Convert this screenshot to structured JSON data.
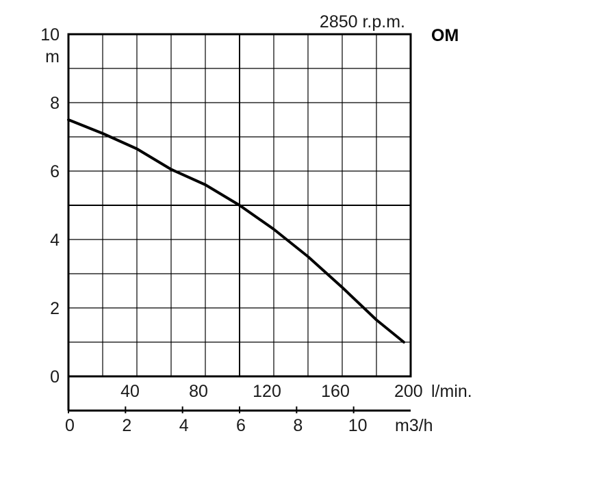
{
  "chart_data": {
    "type": "line",
    "title": "",
    "speed_label": "2850 r.p.m.",
    "model_label": "OM",
    "y_axis": {
      "min": 0,
      "max": 10,
      "unit_label": "m",
      "ticks": [
        "0",
        "2",
        "4",
        "6",
        "8",
        "10"
      ],
      "tick_values": [
        0,
        2,
        4,
        6,
        8,
        10
      ]
    },
    "x_axis_flow_lmin": {
      "unit_label": "l/min.",
      "ticks": [
        "40",
        "80",
        "120",
        "160",
        "200"
      ],
      "tick_values": [
        40,
        80,
        120,
        160,
        200
      ],
      "min": 0,
      "max": 200
    },
    "x_axis_flow_m3h": {
      "unit_label": "m3/h",
      "ticks": [
        "0",
        "2",
        "4",
        "6",
        "8",
        "10"
      ],
      "tick_values": [
        0,
        2,
        4,
        6,
        8,
        10
      ],
      "min": 0,
      "max": 12
    },
    "grid": true,
    "series": [
      {
        "x_lmin": [
          0,
          20,
          40,
          60,
          80,
          100,
          120,
          140,
          160,
          180,
          196
        ],
        "head_m": [
          7.5,
          7.1,
          6.65,
          6.05,
          5.6,
          5.0,
          4.3,
          3.5,
          2.6,
          1.65,
          1.0
        ]
      }
    ]
  }
}
